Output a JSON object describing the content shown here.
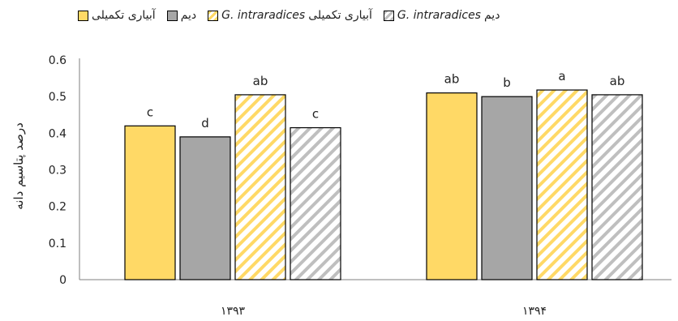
{
  "chart_data": {
    "type": "bar",
    "categories": [
      "۱۳۹۳",
      "۱۳۹۴"
    ],
    "ylabel": "درصد پتاسیم دانه",
    "ylim": [
      0,
      0.6
    ],
    "yticks": [
      "0",
      "0.1",
      "0.2",
      "0.3",
      "0.4",
      "0.5",
      "0.6"
    ],
    "legend_position": "top",
    "grid": false,
    "series": [
      {
        "name": "آبیاری تکمیلی",
        "legend_parts": [
          "آبیاری تکمیلی"
        ],
        "values": [
          0.42,
          0.51
        ],
        "labels": [
          "c",
          "ab"
        ],
        "color": "#FFD966",
        "pattern": "solid"
      },
      {
        "name": "دیم",
        "legend_parts": [
          "دیم"
        ],
        "values": [
          0.39,
          0.5
        ],
        "labels": [
          "d",
          "b"
        ],
        "color": "#A6A6A6",
        "pattern": "solid"
      },
      {
        "name": "آبیاری تکمیلی G. intraradices",
        "legend_parts": [
          "G. intraradices",
          "آبیاری تکمیلی"
        ],
        "values": [
          0.505,
          0.518
        ],
        "labels": [
          "ab",
          "a"
        ],
        "color": "#FFD966",
        "pattern": "hatch"
      },
      {
        "name": "دیم G. intraradices",
        "legend_parts": [
          "G. intraradices",
          "دیم"
        ],
        "values": [
          0.415,
          0.505
        ],
        "labels": [
          "c",
          "ab"
        ],
        "color": "#BFBFBF",
        "pattern": "hatch"
      }
    ]
  }
}
